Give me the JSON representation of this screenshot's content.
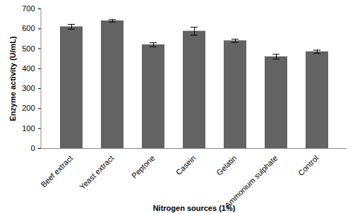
{
  "chart_data": {
    "type": "bar",
    "x_label": "Nitrogen sources (1%)",
    "y_label": "Enzyme activity (U/mL)",
    "categories": [
      "Beef extract",
      "Yeast extract",
      "Peptone",
      "Casein",
      "Gelatin",
      "Ammonium sulphate",
      "Control"
    ],
    "values": [
      610,
      640,
      520,
      588,
      540,
      460,
      485
    ],
    "errors": [
      12,
      6,
      10,
      20,
      8,
      12,
      8
    ],
    "color": "#636363",
    "ylim": [
      0,
      700
    ],
    "yticks": [
      0,
      100,
      200,
      300,
      400,
      500,
      600,
      700
    ],
    "grid": false
  }
}
